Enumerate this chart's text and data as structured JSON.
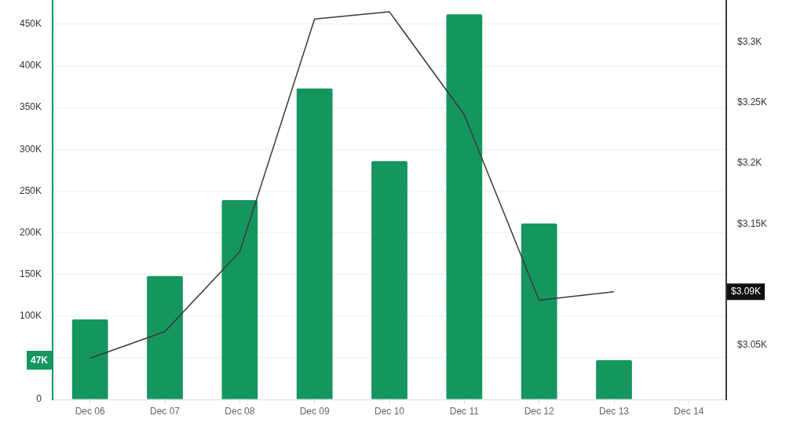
{
  "chart_data": {
    "type": "bar",
    "categories": [
      "Dec 06",
      "Dec 07",
      "Dec 08",
      "Dec 09",
      "Dec 10",
      "Dec 11",
      "Dec 12",
      "Dec 13",
      "Dec 14"
    ],
    "series": [
      {
        "color": "#15965f",
        "values": [
          96000,
          148000,
          239000,
          373000,
          286000,
          462000,
          211000,
          47000,
          null
        ]
      },
      {
        "type": "line",
        "axis": "y2",
        "color": "#3a3a3a",
        "values": [
          3039,
          3061,
          3127,
          3319,
          3325,
          3240,
          3087,
          3094,
          null
        ]
      }
    ],
    "ylim": [
      0,
      478000
    ],
    "yticks": [
      {
        "value": 0,
        "label": "0"
      },
      {
        "value": 50000,
        "label": null
      },
      {
        "value": 100000,
        "label": "100K"
      },
      {
        "value": 150000,
        "label": "150K"
      },
      {
        "value": 200000,
        "label": "200K"
      },
      {
        "value": 250000,
        "label": "250K"
      },
      {
        "value": 300000,
        "label": "300K"
      },
      {
        "value": 350000,
        "label": "350K"
      },
      {
        "value": 400000,
        "label": "400K"
      },
      {
        "value": 450000,
        "label": "450K"
      }
    ],
    "y2lim": [
      3005,
      3334
    ],
    "y2ticks": [
      {
        "value": 3050,
        "label": "$3.05K"
      },
      {
        "value": 3150,
        "label": "$3.15K"
      },
      {
        "value": 3200,
        "label": "$3.2K"
      },
      {
        "value": 3250,
        "label": "$3.25K"
      },
      {
        "value": 3300,
        "label": "$3.3K"
      }
    ],
    "annotations": [
      "47K",
      "$3.09K"
    ],
    "grid": "y",
    "legend": false,
    "marker": "none"
  }
}
